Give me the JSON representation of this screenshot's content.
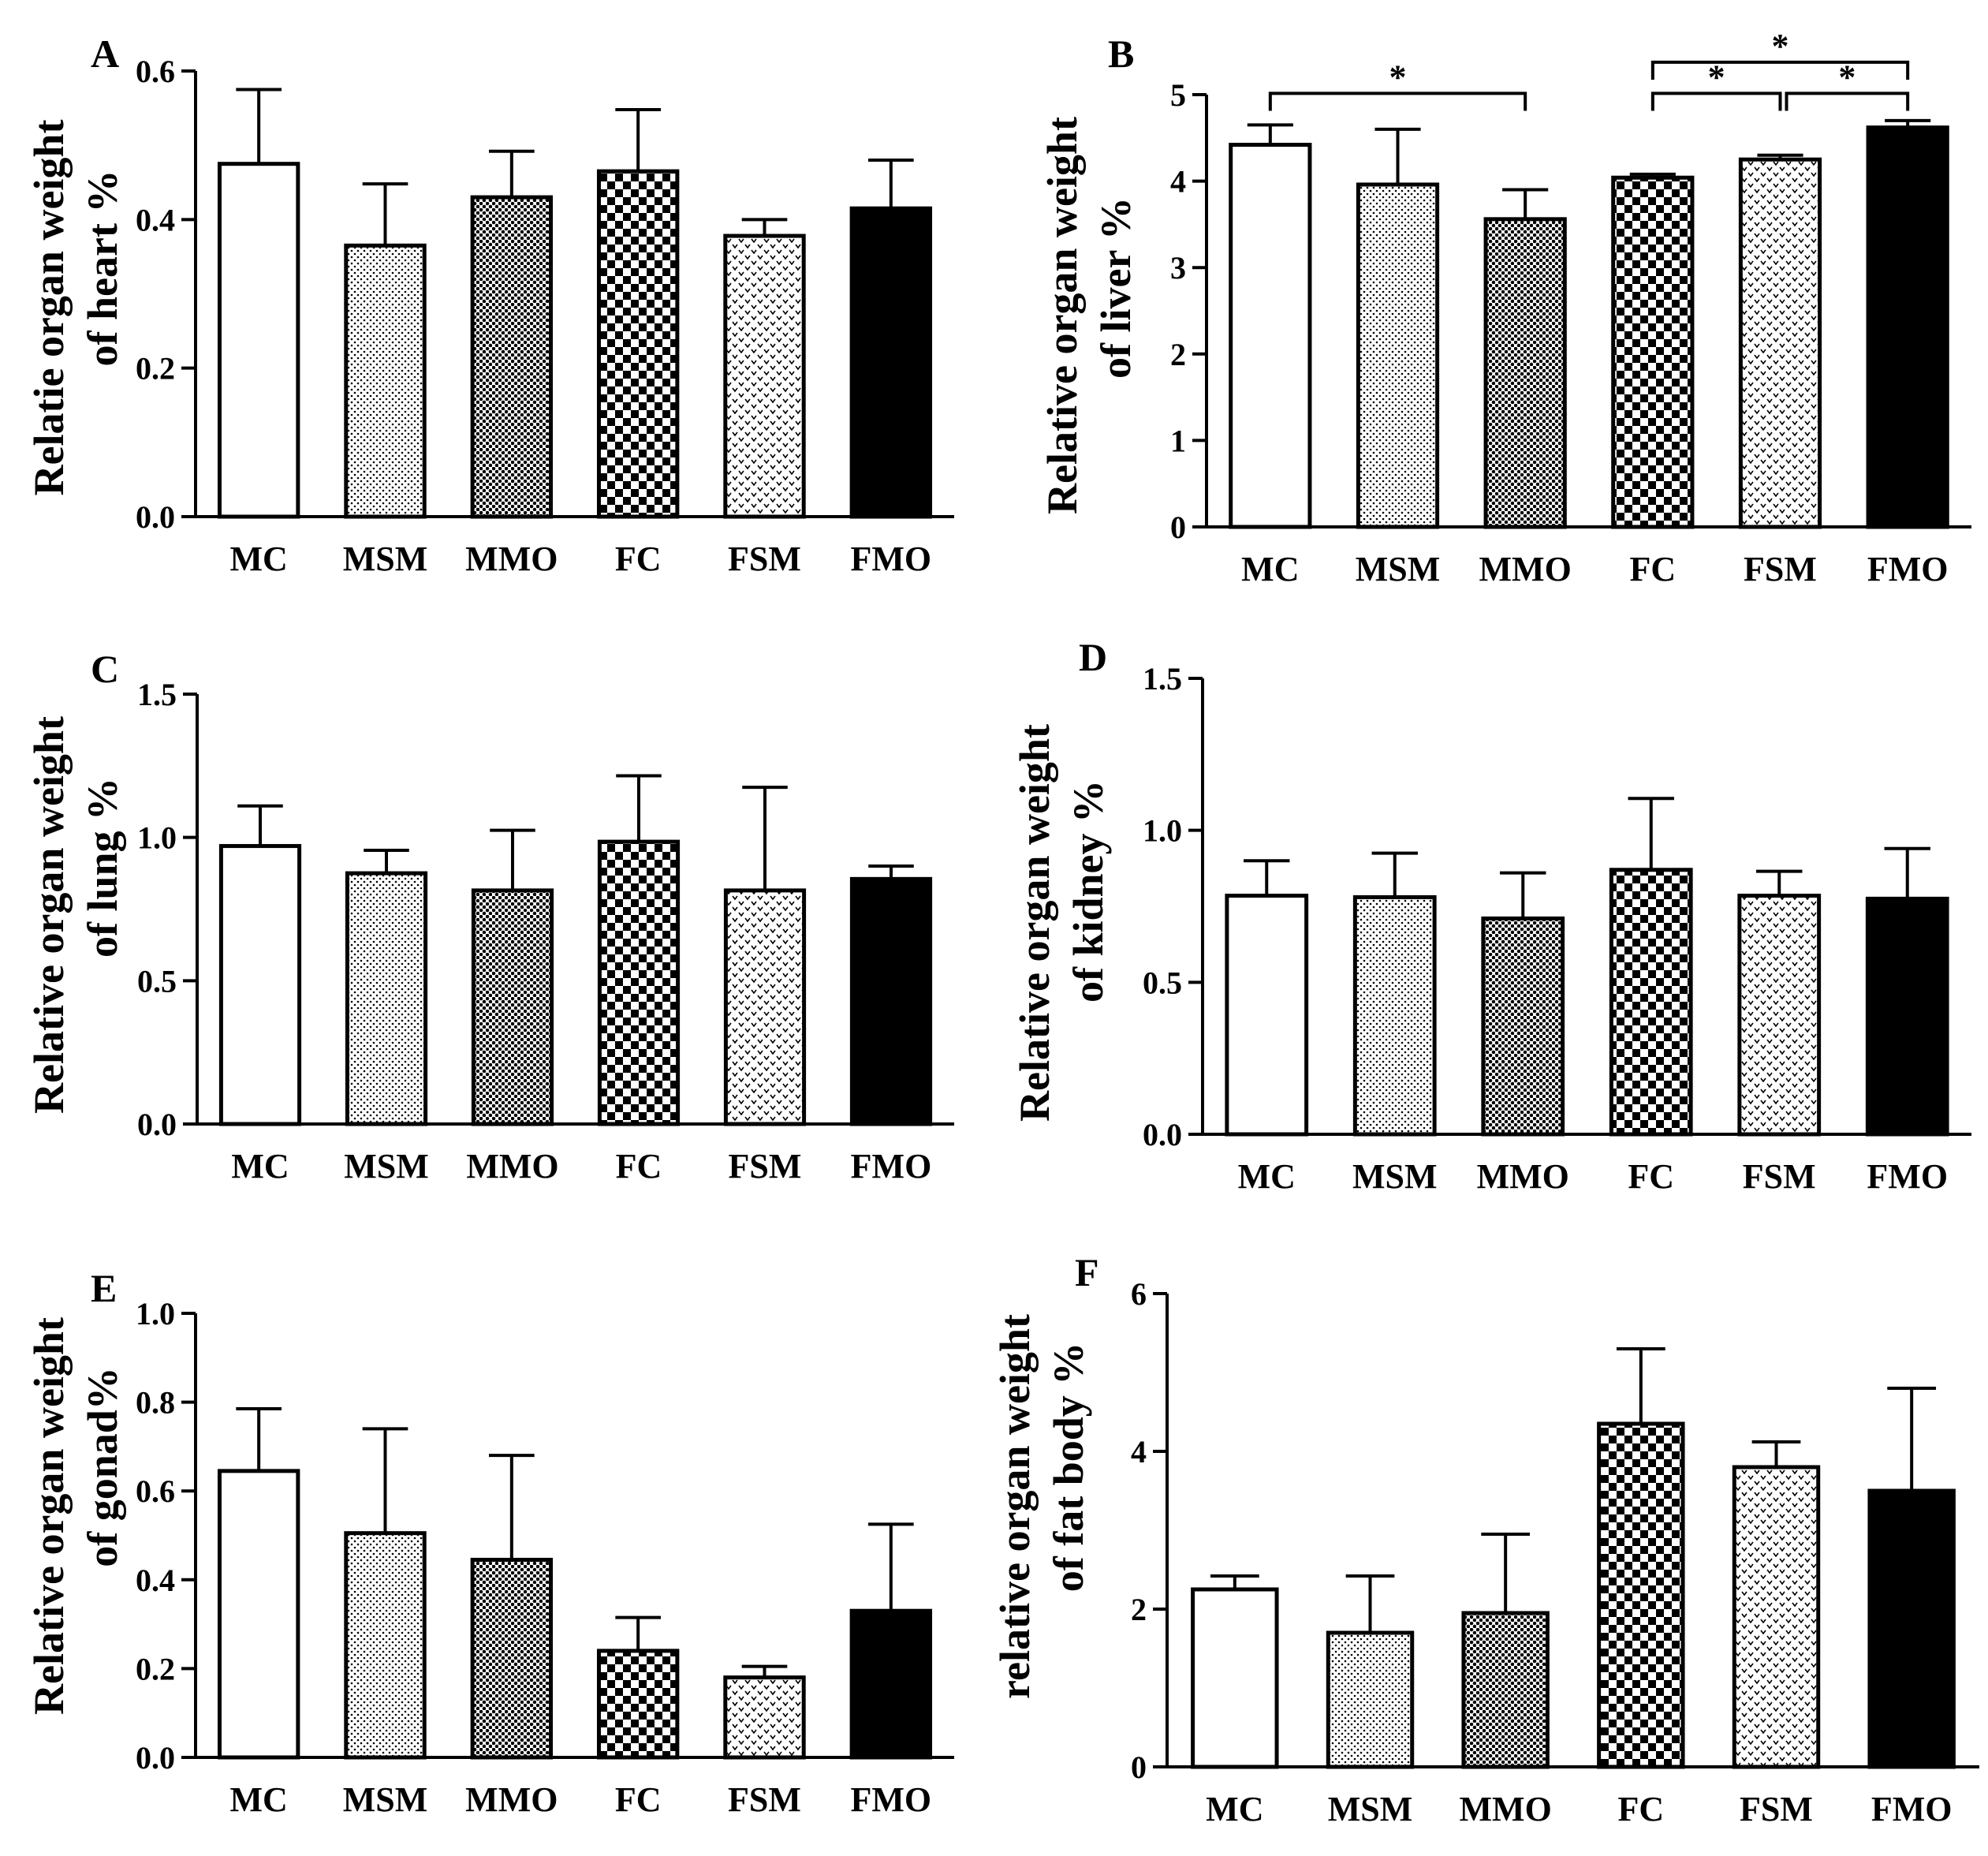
{
  "figure": {
    "colors": {
      "ink": "#000000",
      "background": "#ffffff"
    },
    "patterns": {
      "MC": "open",
      "MSM": "fine-dots",
      "MMO": "dense-dots",
      "FC": "checkerboard",
      "FSM": "chevrons",
      "FMO": "solid"
    }
  },
  "chart_data": [
    {
      "panel": "A",
      "type": "bar",
      "categories": [
        "MC",
        "MSM",
        "MMO",
        "FC",
        "FSM",
        "FMO"
      ],
      "values": [
        0.475,
        0.365,
        0.43,
        0.465,
        0.378,
        0.415
      ],
      "error_upper": [
        0.575,
        0.448,
        0.492,
        0.548,
        0.4,
        0.48
      ],
      "ylabel_lines": [
        "Relatie organ weight",
        "of heart %"
      ],
      "ylim": [
        0,
        0.6
      ],
      "yticks": [
        0.0,
        0.2,
        0.4,
        0.6
      ],
      "ytick_labels": [
        "0.0",
        "0.2",
        "0.4",
        "0.6"
      ],
      "significance": []
    },
    {
      "panel": "B",
      "type": "bar",
      "categories": [
        "MC",
        "MSM",
        "MMO",
        "FC",
        "FSM",
        "FMO"
      ],
      "values": [
        4.42,
        3.96,
        3.56,
        4.04,
        4.25,
        4.62
      ],
      "error_upper": [
        4.65,
        4.6,
        3.9,
        4.08,
        4.3,
        4.7
      ],
      "ylabel_lines": [
        "Relative organ weight",
        "of liver %"
      ],
      "ylim": [
        0,
        5
      ],
      "yticks": [
        0,
        1,
        2,
        3,
        4,
        5
      ],
      "ytick_labels": [
        "0",
        "1",
        "2",
        "3",
        "4",
        "5"
      ],
      "significance": [
        {
          "from": 0,
          "to": 2,
          "level": 0,
          "label": "*"
        },
        {
          "from": 3,
          "to": 4,
          "level": 0,
          "label": "*"
        },
        {
          "from": 4,
          "to": 5,
          "level": 0,
          "label": "*"
        },
        {
          "from": 3,
          "to": 5,
          "level": 1,
          "label": "*"
        }
      ]
    },
    {
      "panel": "C",
      "type": "bar",
      "categories": [
        "MC",
        "MSM",
        "MMO",
        "FC",
        "FSM",
        "FMO"
      ],
      "values": [
        0.97,
        0.875,
        0.815,
        0.985,
        0.815,
        0.855
      ],
      "error_upper": [
        1.11,
        0.955,
        1.025,
        1.215,
        1.175,
        0.9
      ],
      "ylabel_lines": [
        "Relative organ weight",
        "of lung %"
      ],
      "ylim": [
        0,
        1.5
      ],
      "yticks": [
        0.0,
        0.5,
        1.0,
        1.5
      ],
      "ytick_labels": [
        "0.0",
        "0.5",
        "1.0",
        "1.5"
      ],
      "significance": []
    },
    {
      "panel": "D",
      "type": "bar",
      "categories": [
        "MC",
        "MSM",
        "MMO",
        "FC",
        "FSM",
        "FMO"
      ],
      "values": [
        0.785,
        0.78,
        0.71,
        0.87,
        0.785,
        0.775
      ],
      "error_upper": [
        0.9,
        0.925,
        0.86,
        1.105,
        0.865,
        0.94
      ],
      "ylabel_lines": [
        "Relative organ weight",
        "of kidney %"
      ],
      "ylim": [
        0,
        1.5
      ],
      "yticks": [
        0.0,
        0.5,
        1.0,
        1.5
      ],
      "ytick_labels": [
        "0.0",
        "0.5",
        "1.0",
        "1.5"
      ],
      "significance": []
    },
    {
      "panel": "E",
      "type": "bar",
      "categories": [
        "MC",
        "MSM",
        "MMO",
        "FC",
        "FSM",
        "FMO"
      ],
      "values": [
        0.645,
        0.505,
        0.445,
        0.24,
        0.18,
        0.33
      ],
      "error_upper": [
        0.785,
        0.74,
        0.68,
        0.315,
        0.205,
        0.525
      ],
      "ylabel_lines": [
        "Relative organ weight",
        "of gonad%"
      ],
      "ylim": [
        0,
        1.0
      ],
      "yticks": [
        0.0,
        0.2,
        0.4,
        0.6,
        0.8,
        1.0
      ],
      "ytick_labels": [
        "0.0",
        "0.2",
        "0.4",
        "0.6",
        "0.8",
        "1.0"
      ],
      "significance": []
    },
    {
      "panel": "F",
      "type": "bar",
      "categories": [
        "MC",
        "MSM",
        "MMO",
        "FC",
        "FSM",
        "FMO"
      ],
      "values": [
        2.25,
        1.7,
        1.95,
        4.35,
        3.8,
        3.5
      ],
      "error_upper": [
        2.42,
        2.42,
        2.95,
        5.3,
        4.12,
        4.8
      ],
      "ylabel_lines": [
        "relative organ weight",
        "of fat body %"
      ],
      "ylim": [
        0,
        6
      ],
      "yticks": [
        0,
        2,
        4,
        6
      ],
      "ytick_labels": [
        "0",
        "2",
        "4",
        "6"
      ],
      "significance": []
    }
  ]
}
